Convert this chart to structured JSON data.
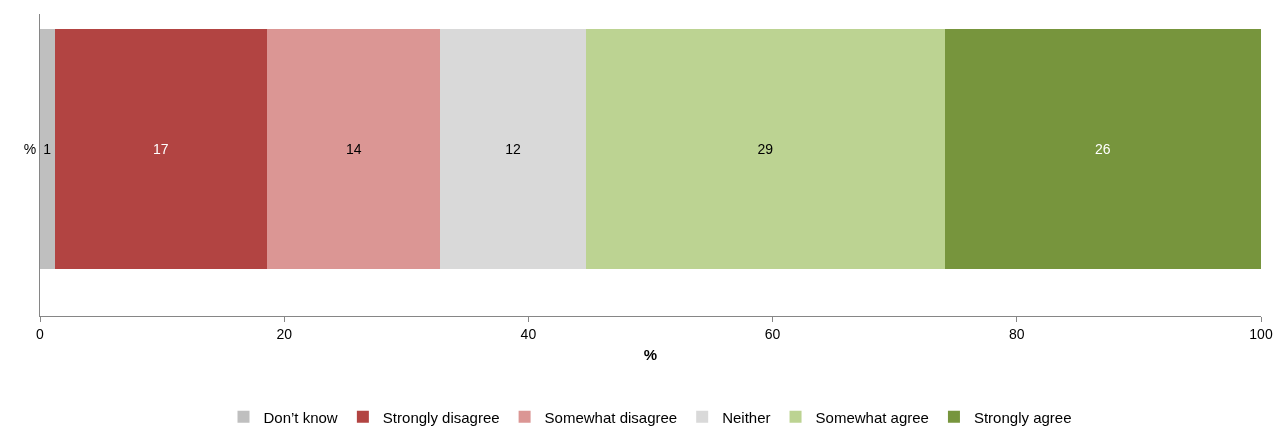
{
  "chart_data": {
    "type": "bar",
    "orientation": "horizontal",
    "stacked": true,
    "categories": [
      "%"
    ],
    "xlabel": "%",
    "xlim": [
      0,
      100
    ],
    "xticks": [
      0,
      20,
      40,
      60,
      80,
      100
    ],
    "grid": false,
    "legend": "bottom",
    "series": [
      {
        "name": "Don’t know",
        "color": "#bfbfbf",
        "values": [
          1.2
        ],
        "value_labels": [
          "1"
        ]
      },
      {
        "name": "Strongly disagree",
        "color": "#b24442",
        "values": [
          17.4
        ],
        "value_labels": [
          "17"
        ]
      },
      {
        "name": "Somewhat disagree",
        "color": "#db9694",
        "values": [
          14.2
        ],
        "value_labels": [
          "14"
        ]
      },
      {
        "name": "Neither",
        "color": "#d9d9d9",
        "values": [
          11.9
        ],
        "value_labels": [
          "12"
        ]
      },
      {
        "name": "Somewhat agree",
        "color": "#bcd392",
        "values": [
          29.4
        ],
        "value_labels": [
          "29"
        ]
      },
      {
        "name": "Strongly agree",
        "color": "#77953d",
        "values": [
          25.9
        ],
        "value_labels": [
          "26"
        ]
      }
    ]
  }
}
